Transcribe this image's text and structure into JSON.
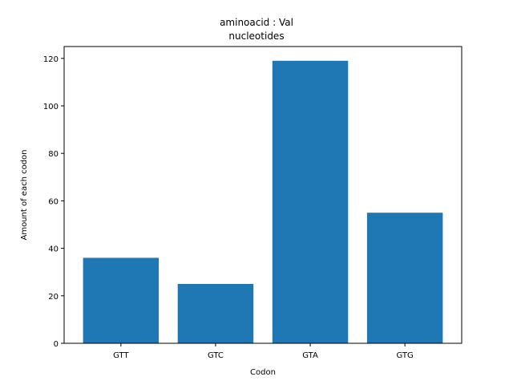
{
  "chart_data": {
    "type": "bar",
    "title_line1": "aminoacid : Val",
    "title_line2": "nucleotides",
    "xlabel": "Codon",
    "ylabel": "Amount of each codon",
    "categories": [
      "GTT",
      "GTC",
      "GTA",
      "GTG"
    ],
    "values": [
      36,
      25,
      119,
      55
    ],
    "ylim": [
      0,
      125
    ],
    "yticks": [
      0,
      20,
      40,
      60,
      80,
      100,
      120
    ],
    "bar_color": "#1f77b4",
    "grid": false,
    "legend": "none"
  }
}
